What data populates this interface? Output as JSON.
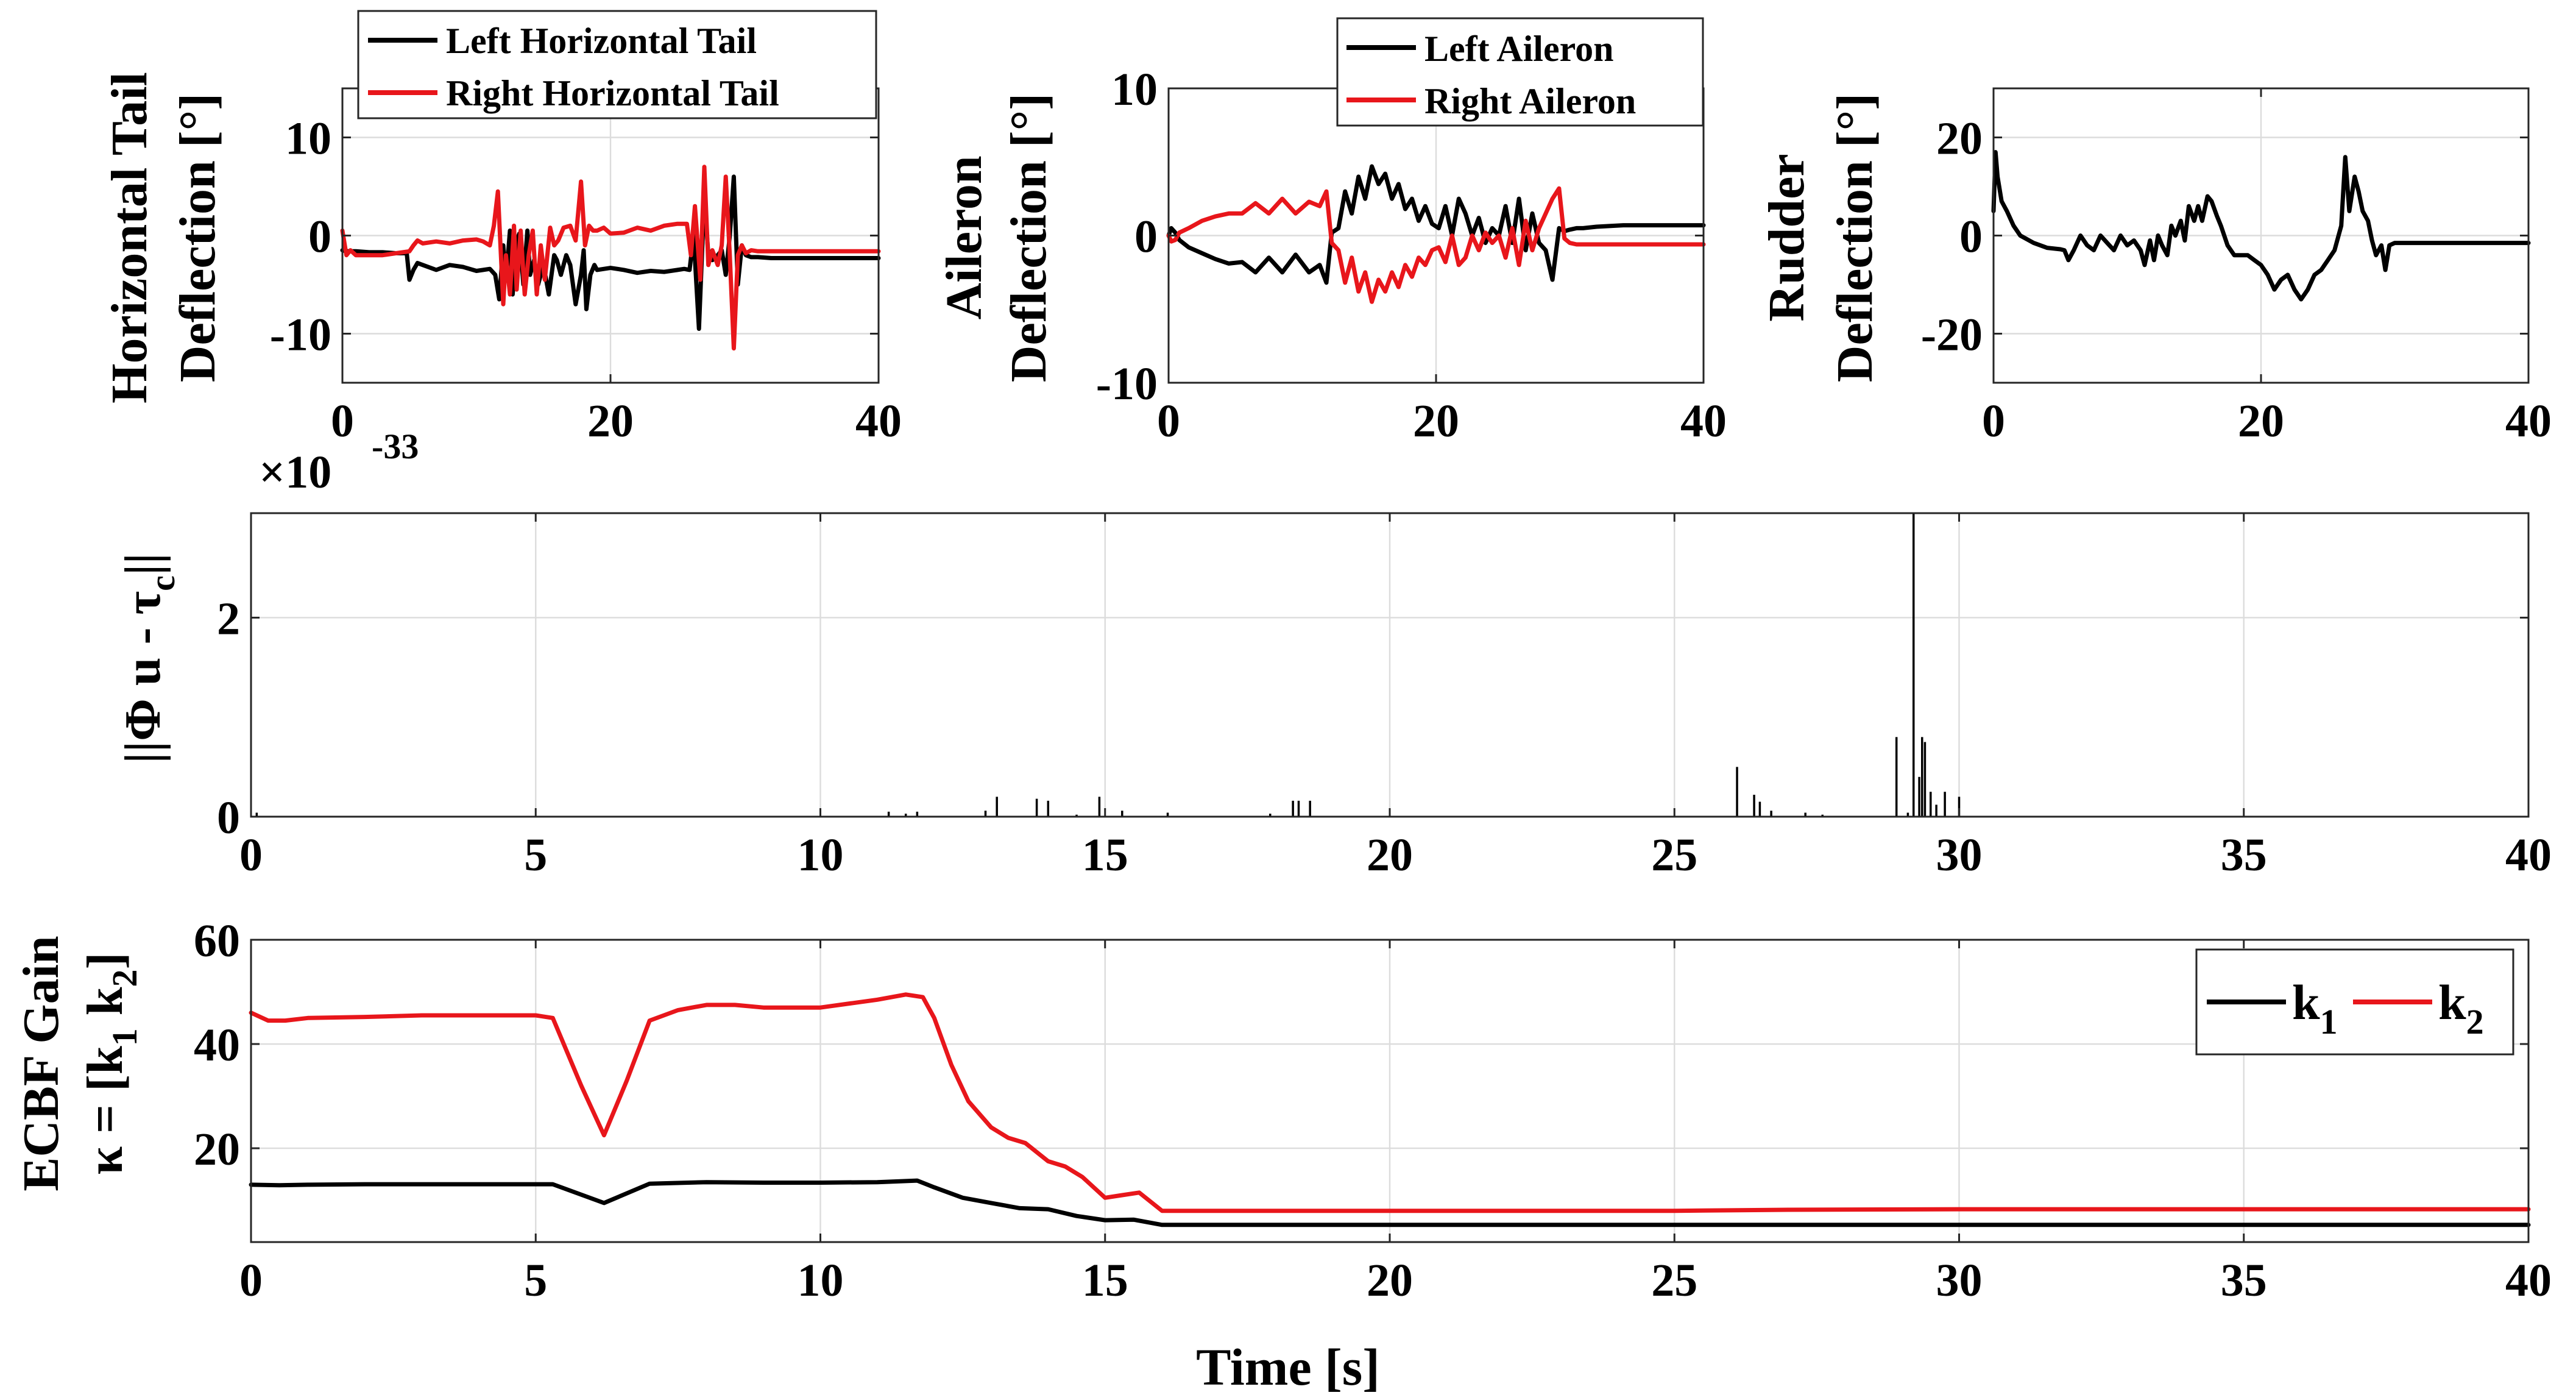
{
  "figure": {
    "x_axis_label": "Time [s]",
    "colors": {
      "series1": "#000000",
      "series2": "#e8161b"
    }
  },
  "panels": {
    "htail": {
      "ylabel_line1": "Horizontal Tail",
      "ylabel_line2": "Deflection [°]",
      "legend": [
        "Left Horizontal Tail",
        "Right Horizontal Tail"
      ]
    },
    "aileron": {
      "ylabel_line1": "Aileron",
      "ylabel_line2": "Deflection [°]",
      "legend": [
        "Left Aileron",
        "Right Aileron"
      ]
    },
    "rudder": {
      "ylabel_line1": "Rudder",
      "ylabel_line2": "Deflection [°]"
    },
    "residual": {
      "ylabel_pre": "||Φ u - τ",
      "ylabel_sub": "c",
      "ylabel_post": "||",
      "exponent_base": "×10",
      "exponent": "-33"
    },
    "gain": {
      "ylabel_line1": "ECBF Gain",
      "ylabel_pre": "κ = [k",
      "ylabel_sub1": "1",
      "ylabel_mid": " k",
      "ylabel_sub2": "2",
      "ylabel_post": "]",
      "legend_k": "k",
      "legend_sub": [
        "1",
        "2"
      ]
    }
  },
  "chart_data": [
    {
      "id": "htail",
      "type": "line",
      "xlabel": "",
      "ylabel": "Horizontal Tail Deflection [°]",
      "xlim": [
        0,
        40
      ],
      "ylim": [
        -15,
        15
      ],
      "xticks": [
        0,
        20,
        40
      ],
      "yticks": [
        -10,
        0,
        10
      ],
      "grid": true,
      "legend": [
        "Left Horizontal Tail",
        "Right Horizontal Tail"
      ],
      "series": [
        {
          "name": "Left Horizontal Tail",
          "color": "#000000",
          "x": [
            0,
            0.3,
            0.5,
            1,
            2,
            3,
            4,
            4.8,
            5,
            5.3,
            5.6,
            6,
            7,
            8,
            9,
            10,
            10.5,
            11,
            11.4,
            11.7,
            12,
            12.2,
            12.5,
            12.7,
            13,
            13.2,
            13.5,
            13.8,
            14,
            14.3,
            14.6,
            15,
            15.4,
            15.8,
            16,
            16.3,
            16.7,
            17,
            17.4,
            17.8,
            18,
            18.2,
            18.5,
            18.8,
            19,
            20,
            21,
            22,
            23,
            24,
            25,
            25.5,
            25.9,
            26.2,
            26.6,
            27,
            27.3,
            27.6,
            28,
            28.3,
            28.6,
            28.9,
            29.2,
            29.5,
            29.8,
            30.1,
            30.5,
            31,
            32,
            34,
            36,
            38,
            40
          ],
          "y": [
            -1.5,
            -1.6,
            -1.6,
            -1.6,
            -1.7,
            -1.7,
            -1.8,
            -1.8,
            -4.5,
            -3.5,
            -2.8,
            -3.0,
            -3.5,
            -3.0,
            -3.2,
            -3.6,
            -3.5,
            -3.4,
            -4.0,
            -6.5,
            -1.0,
            -4.5,
            0.5,
            -6.0,
            -0.5,
            0.2,
            -5.0,
            0.5,
            -4.0,
            -2.5,
            -5.0,
            -3.0,
            -6.0,
            -2.0,
            -2.5,
            -4.0,
            -2.0,
            -3.0,
            -7.0,
            -4.0,
            -1.5,
            -7.5,
            -4.0,
            -3.0,
            -3.5,
            -3.3,
            -3.5,
            -3.8,
            -3.6,
            -3.7,
            -3.5,
            -3.4,
            -3.5,
            0.0,
            -9.5,
            4.0,
            -2.0,
            -2.5,
            -2.0,
            -1.5,
            -4.0,
            0.0,
            6.0,
            -5.0,
            -1.0,
            -2.0,
            -2.2,
            -2.2,
            -2.3,
            -2.3,
            -2.3,
            -2.3,
            -2.3
          ]
        },
        {
          "name": "Right Horizontal Tail",
          "color": "#e8161b",
          "x": [
            0,
            0.3,
            0.6,
            1,
            2,
            3,
            4,
            5,
            5.3,
            5.6,
            6,
            7,
            8,
            9,
            10,
            10.5,
            11,
            11.3,
            11.6,
            12,
            12.2,
            12.5,
            12.8,
            13,
            13.3,
            13.6,
            13.9,
            14.2,
            14.5,
            14.8,
            15.1,
            15.5,
            15.8,
            16.1,
            16.5,
            17,
            17.4,
            17.8,
            18.1,
            18.4,
            18.7,
            19,
            19.5,
            20,
            21,
            22,
            23,
            24,
            25,
            25.7,
            26,
            26.3,
            26.7,
            27,
            27.3,
            27.6,
            28,
            28.3,
            28.6,
            28.9,
            29.2,
            29.5,
            29.8,
            30.1,
            30.5,
            31,
            32,
            34,
            36,
            38,
            40
          ],
          "y": [
            0.5,
            -2.0,
            -1.5,
            -2.0,
            -2.0,
            -2.0,
            -1.8,
            -1.6,
            -1.0,
            -0.5,
            -0.8,
            -0.6,
            -0.8,
            -0.5,
            -0.4,
            -0.6,
            -1.0,
            1.0,
            4.5,
            -7.0,
            -2.0,
            -6.0,
            1.0,
            -5.5,
            0.5,
            -6.0,
            -2.0,
            0.5,
            -6.0,
            -1.0,
            -4.5,
            0.8,
            -1.0,
            -0.5,
            0.8,
            1.0,
            -0.5,
            5.5,
            -1.0,
            1.0,
            0.5,
            0.5,
            0.8,
            0.2,
            0.3,
            0.8,
            0.5,
            1.0,
            1.2,
            1.2,
            -2.0,
            3.0,
            -4.5,
            7.0,
            -3.0,
            -1.5,
            -3.0,
            -1.0,
            6.0,
            -2.0,
            -11.5,
            -2.0,
            -1.0,
            -1.8,
            -1.5,
            -1.6,
            -1.6,
            -1.6,
            -1.6,
            -1.6,
            -1.6
          ]
        }
      ]
    },
    {
      "id": "aileron",
      "type": "line",
      "xlabel": "",
      "ylabel": "Aileron Deflection [°]",
      "xlim": [
        0,
        40
      ],
      "ylim": [
        -10,
        10
      ],
      "xticks": [
        0,
        20,
        40
      ],
      "yticks": [
        -10,
        0,
        10
      ],
      "grid": true,
      "legend": [
        "Left Aileron",
        "Right Aileron"
      ],
      "series": [
        {
          "name": "Left Aileron",
          "color": "#000000",
          "x": [
            0,
            0.2,
            0.5,
            0.8,
            1.5,
            2.5,
            3.5,
            4.5,
            5.5,
            6.5,
            7.5,
            8.5,
            9.5,
            10.5,
            11.3,
            11.8,
            12.2,
            12.7,
            13.2,
            13.7,
            14.2,
            14.7,
            15.2,
            15.7,
            16.2,
            16.7,
            17.2,
            17.7,
            18.2,
            18.7,
            19.2,
            19.7,
            20.2,
            20.7,
            21.2,
            21.7,
            22.2,
            22.7,
            23.2,
            23.7,
            24.2,
            24.7,
            25.2,
            25.7,
            26.2,
            26.7,
            27.2,
            27.7,
            28.2,
            28.7,
            29.2,
            29.6,
            30,
            30.5,
            31,
            32,
            34,
            36,
            38,
            40
          ],
          "y": [
            0.0,
            0.5,
            0.2,
            -0.3,
            -0.8,
            -1.2,
            -1.6,
            -1.9,
            -1.8,
            -2.5,
            -1.5,
            -2.5,
            -1.3,
            -2.5,
            -2.0,
            -3.2,
            0.2,
            0.5,
            3.0,
            1.5,
            4.0,
            2.5,
            4.7,
            3.5,
            4.2,
            2.5,
            3.5,
            1.8,
            2.5,
            1.0,
            2.0,
            0.8,
            0.5,
            2.0,
            0.0,
            2.5,
            1.5,
            0.0,
            1.2,
            -0.5,
            0.5,
            0.0,
            2.0,
            -0.5,
            2.5,
            -1.0,
            1.5,
            -0.5,
            -1.0,
            -3.0,
            0.5,
            0.3,
            0.4,
            0.5,
            0.5,
            0.6,
            0.7,
            0.7,
            0.7,
            0.7
          ]
        },
        {
          "name": "Right Aileron",
          "color": "#e8161b",
          "x": [
            0,
            0.2,
            0.5,
            0.8,
            1.5,
            2.5,
            3.5,
            4.5,
            5.5,
            6.5,
            7.5,
            8.5,
            9.5,
            10.5,
            11.3,
            11.8,
            12.2,
            12.7,
            13.2,
            13.7,
            14.2,
            14.7,
            15.2,
            15.7,
            16.2,
            16.7,
            17.2,
            17.7,
            18.2,
            18.7,
            19.2,
            19.7,
            20.2,
            20.7,
            21.2,
            21.7,
            22.2,
            22.7,
            23.2,
            23.7,
            24.2,
            24.7,
            25.2,
            25.7,
            26.2,
            26.7,
            27.2,
            27.7,
            28.2,
            28.7,
            29.2,
            29.6,
            30,
            30.5,
            31,
            32,
            34,
            36,
            38,
            40
          ],
          "y": [
            0.0,
            -0.4,
            -0.3,
            0.2,
            0.5,
            1.0,
            1.3,
            1.5,
            1.5,
            2.2,
            1.5,
            2.5,
            1.5,
            2.3,
            2.0,
            3.0,
            -0.5,
            -1.0,
            -3.2,
            -1.5,
            -3.8,
            -2.5,
            -4.5,
            -3.0,
            -3.8,
            -2.5,
            -3.5,
            -2.0,
            -2.8,
            -1.5,
            -2.0,
            -1.0,
            -0.8,
            -1.8,
            0.0,
            -2.0,
            -1.5,
            0.0,
            -1.0,
            0.2,
            -0.5,
            0.0,
            -1.5,
            0.5,
            -2.0,
            1.0,
            -1.0,
            0.5,
            1.5,
            2.5,
            3.2,
            -0.2,
            -0.5,
            -0.6,
            -0.6,
            -0.6,
            -0.6,
            -0.6,
            -0.6,
            -0.6
          ]
        }
      ]
    },
    {
      "id": "rudder",
      "type": "line",
      "xlabel": "",
      "ylabel": "Rudder Deflection [°]",
      "xlim": [
        0,
        40
      ],
      "ylim": [
        -30,
        30
      ],
      "xticks": [
        0,
        20,
        40
      ],
      "yticks": [
        -20,
        0,
        20
      ],
      "grid": true,
      "series": [
        {
          "name": "Rudder",
          "color": "#000000",
          "x": [
            0,
            0.15,
            0.3,
            0.6,
            1,
            1.5,
            2,
            3,
            4,
            5,
            5.3,
            5.6,
            6,
            6.5,
            7,
            7.5,
            8,
            8.5,
            9,
            9.5,
            10,
            10.5,
            11,
            11.3,
            11.7,
            12,
            12.3,
            12.6,
            13,
            13.3,
            13.6,
            14,
            14.3,
            14.6,
            15,
            15.3,
            15.6,
            16,
            16.3,
            16.7,
            17,
            17.5,
            18,
            18.5,
            19,
            19.5,
            20,
            20.5,
            21,
            21.5,
            22,
            22.5,
            23,
            23.5,
            24,
            24.5,
            25,
            25.5,
            26,
            26.3,
            26.6,
            27,
            27.3,
            27.6,
            28,
            28.3,
            28.6,
            29,
            29.3,
            29.6,
            30,
            31,
            32,
            34,
            36,
            38,
            40
          ],
          "y": [
            5,
            17,
            12,
            7,
            5,
            2,
            0,
            -1.5,
            -2.5,
            -2.8,
            -3,
            -5,
            -3,
            0,
            -2,
            -3,
            0,
            -1.5,
            -3,
            0,
            -2,
            -1,
            -3,
            -6,
            -1,
            -5,
            0,
            -2,
            -4,
            2,
            0,
            3,
            -1,
            6,
            3,
            6,
            3,
            8,
            7,
            4,
            2,
            -2,
            -4,
            -4,
            -4,
            -5,
            -6,
            -8,
            -11,
            -9,
            -8,
            -11,
            -13,
            -11,
            -8,
            -7,
            -5,
            -3,
            2,
            16,
            5,
            12,
            9,
            5,
            3,
            -1,
            -4,
            -2,
            -7,
            -2,
            -1.5,
            -1.5,
            -1.5,
            -1.5,
            -1.5,
            -1.5,
            -1.5
          ]
        }
      ]
    },
    {
      "id": "residual",
      "type": "bar",
      "xlabel": "",
      "ylabel": "||Φ u - τc||",
      "y_scale": "×10^-33",
      "xlim": [
        0,
        40
      ],
      "ylim": [
        0,
        3.05
      ],
      "xticks": [
        0,
        5,
        10,
        15,
        20,
        25,
        30,
        35,
        40
      ],
      "yticks": [
        0,
        2
      ],
      "grid": true,
      "series": [
        {
          "name": "residual",
          "color": "#000000",
          "x": [
            0.1,
            11.2,
            11.5,
            11.7,
            12.9,
            13.1,
            13.8,
            14.0,
            14.5,
            14.9,
            15.3,
            16.1,
            17.9,
            18.3,
            18.4,
            18.6,
            26.1,
            26.4,
            26.5,
            26.7,
            27.3,
            27.6,
            28.9,
            29.1,
            29.2,
            29.3,
            29.35,
            29.4,
            29.5,
            29.6,
            29.75,
            30.0
          ],
          "y": [
            0.04,
            0.05,
            0.03,
            0.05,
            0.06,
            0.2,
            0.18,
            0.16,
            0.02,
            0.2,
            0.06,
            0.04,
            0.03,
            0.16,
            0.16,
            0.16,
            0.5,
            0.22,
            0.15,
            0.06,
            0.04,
            0.02,
            0.8,
            0.04,
            3.05,
            0.4,
            0.8,
            0.75,
            0.25,
            0.12,
            0.25,
            0.2
          ]
        }
      ]
    },
    {
      "id": "gain",
      "type": "line",
      "xlabel": "Time [s]",
      "ylabel": "ECBF Gain κ = [k1 k2]",
      "xlim": [
        0,
        40
      ],
      "ylim": [
        2,
        60
      ],
      "xticks": [
        0,
        5,
        10,
        15,
        20,
        25,
        30,
        35,
        40
      ],
      "yticks": [
        20,
        40,
        60
      ],
      "grid": true,
      "legend": [
        "k1",
        "k2"
      ],
      "series": [
        {
          "name": "k1",
          "color": "#000000",
          "x": [
            0,
            0.5,
            1,
            2,
            3,
            4,
            5,
            5.3,
            6.2,
            7,
            8,
            9,
            10,
            11,
            11.7,
            12,
            12.5,
            13,
            13.5,
            14,
            14.5,
            15,
            15.5,
            16,
            17,
            20,
            25,
            30,
            35,
            40
          ],
          "y": [
            13,
            12.9,
            13,
            13.1,
            13.1,
            13.1,
            13.1,
            13.1,
            9.5,
            13.2,
            13.5,
            13.4,
            13.4,
            13.5,
            13.8,
            12.5,
            10.5,
            9.5,
            8.5,
            8.3,
            7,
            6.2,
            6.3,
            5.3,
            5.3,
            5.3,
            5.3,
            5.3,
            5.3,
            5.3
          ]
        },
        {
          "name": "k2",
          "color": "#e8161b",
          "x": [
            0,
            0.3,
            0.6,
            1,
            2,
            3,
            4,
            5,
            5.3,
            5.8,
            6.2,
            6.6,
            7,
            7.5,
            8,
            8.5,
            9,
            10,
            11,
            11.5,
            11.8,
            12,
            12.3,
            12.6,
            13,
            13.3,
            13.6,
            14,
            14.3,
            14.6,
            15,
            15.3,
            15.6,
            16,
            17,
            20,
            25,
            27,
            30,
            35,
            40
          ],
          "y": [
            46,
            44.5,
            44.5,
            45,
            45.2,
            45.5,
            45.5,
            45.5,
            45,
            32,
            22.5,
            33,
            44.5,
            46.5,
            47.5,
            47.5,
            47,
            47,
            48.5,
            49.5,
            49,
            45,
            36,
            29,
            24,
            22,
            21,
            17.5,
            16.5,
            14.5,
            10.5,
            11,
            11.5,
            8,
            8,
            8,
            8,
            8.2,
            8.3,
            8.3,
            8.3
          ]
        }
      ]
    }
  ]
}
